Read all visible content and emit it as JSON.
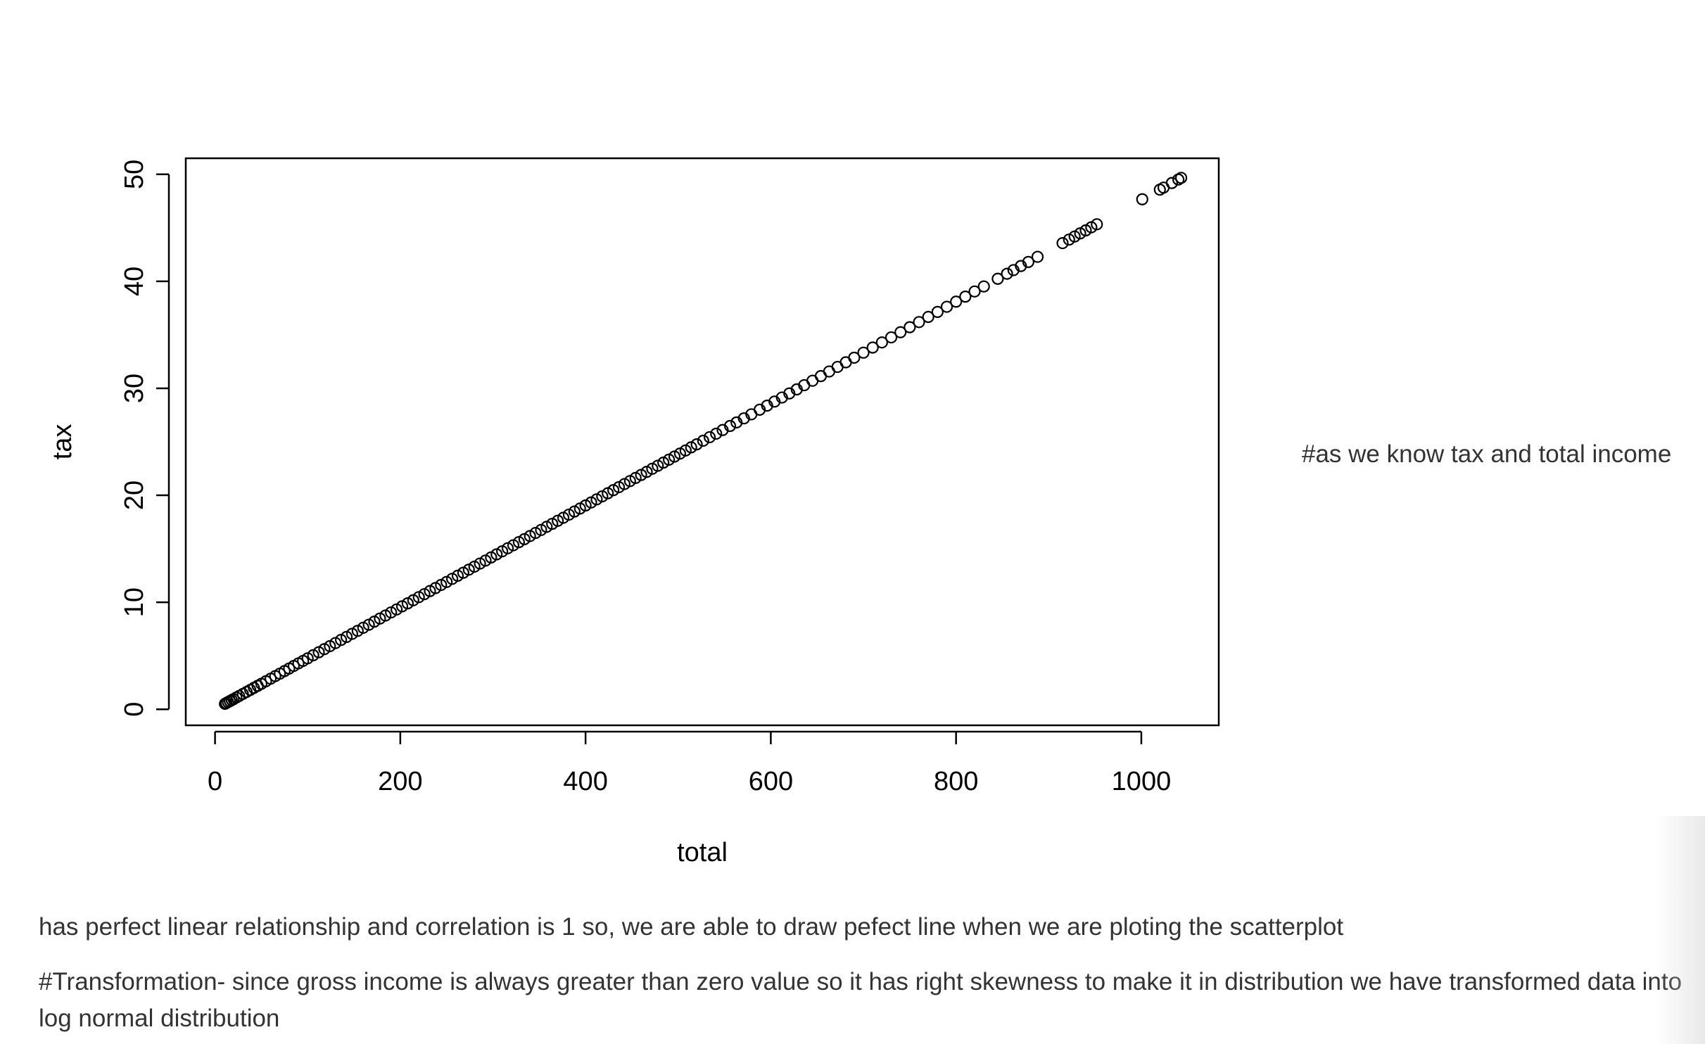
{
  "chart_data": {
    "type": "scatter",
    "title": "",
    "xlabel": "total",
    "ylabel": "tax",
    "xlim": [
      -31.6,
      1083.6
    ],
    "ylim": [
      -1.5,
      51.5
    ],
    "x_ticks": [
      0,
      200,
      400,
      600,
      800,
      1000
    ],
    "y_ticks": [
      0,
      10,
      20,
      30,
      40,
      50
    ],
    "marker": "open-circle",
    "color": "#000000",
    "grid": false,
    "legend": "none",
    "relationship": "tax = 0.047619 * total",
    "points": [
      [
        10.7,
        0.51
      ],
      [
        12,
        0.57
      ],
      [
        14,
        0.67
      ],
      [
        16,
        0.76
      ],
      [
        18,
        0.86
      ],
      [
        20,
        0.95
      ],
      [
        23,
        1.1
      ],
      [
        26,
        1.24
      ],
      [
        30,
        1.43
      ],
      [
        34,
        1.62
      ],
      [
        38,
        1.81
      ],
      [
        42,
        2.0
      ],
      [
        46,
        2.19
      ],
      [
        50,
        2.38
      ],
      [
        55,
        2.62
      ],
      [
        60,
        2.86
      ],
      [
        65,
        3.1
      ],
      [
        70,
        3.33
      ],
      [
        75,
        3.57
      ],
      [
        80,
        3.81
      ],
      [
        85,
        4.05
      ],
      [
        90,
        4.29
      ],
      [
        95,
        4.52
      ],
      [
        100,
        4.76
      ],
      [
        106,
        5.05
      ],
      [
        112,
        5.33
      ],
      [
        118,
        5.62
      ],
      [
        124,
        5.9
      ],
      [
        130,
        6.19
      ],
      [
        136,
        6.48
      ],
      [
        142,
        6.76
      ],
      [
        148,
        7.05
      ],
      [
        154,
        7.33
      ],
      [
        160,
        7.62
      ],
      [
        166,
        7.9
      ],
      [
        172,
        8.19
      ],
      [
        178,
        8.48
      ],
      [
        184,
        8.76
      ],
      [
        190,
        9.05
      ],
      [
        196,
        9.33
      ],
      [
        202,
        9.62
      ],
      [
        208,
        9.9
      ],
      [
        214,
        10.19
      ],
      [
        220,
        10.48
      ],
      [
        226,
        10.76
      ],
      [
        232,
        11.05
      ],
      [
        238,
        11.33
      ],
      [
        244,
        11.62
      ],
      [
        250,
        11.9
      ],
      [
        256,
        12.19
      ],
      [
        262,
        12.48
      ],
      [
        268,
        12.76
      ],
      [
        274,
        13.05
      ],
      [
        280,
        13.33
      ],
      [
        286,
        13.62
      ],
      [
        292,
        13.9
      ],
      [
        298,
        14.19
      ],
      [
        304,
        14.48
      ],
      [
        310,
        14.76
      ],
      [
        316,
        15.05
      ],
      [
        322,
        15.33
      ],
      [
        328,
        15.62
      ],
      [
        334,
        15.9
      ],
      [
        340,
        16.19
      ],
      [
        346,
        16.48
      ],
      [
        352,
        16.76
      ],
      [
        358,
        17.05
      ],
      [
        364,
        17.33
      ],
      [
        370,
        17.62
      ],
      [
        376,
        17.9
      ],
      [
        382,
        18.19
      ],
      [
        388,
        18.48
      ],
      [
        394,
        18.76
      ],
      [
        400,
        19.05
      ],
      [
        406,
        19.33
      ],
      [
        412,
        19.62
      ],
      [
        418,
        19.9
      ],
      [
        424,
        20.19
      ],
      [
        430,
        20.48
      ],
      [
        436,
        20.76
      ],
      [
        442,
        21.05
      ],
      [
        448,
        21.33
      ],
      [
        454,
        21.62
      ],
      [
        460,
        21.9
      ],
      [
        466,
        22.19
      ],
      [
        472,
        22.48
      ],
      [
        478,
        22.76
      ],
      [
        484,
        23.05
      ],
      [
        490,
        23.33
      ],
      [
        496,
        23.62
      ],
      [
        502,
        23.9
      ],
      [
        508,
        24.19
      ],
      [
        514,
        24.48
      ],
      [
        520,
        24.76
      ],
      [
        527,
        25.1
      ],
      [
        534,
        25.43
      ],
      [
        541,
        25.76
      ],
      [
        548,
        26.1
      ],
      [
        556,
        26.48
      ],
      [
        563,
        26.81
      ],
      [
        571,
        27.19
      ],
      [
        579,
        27.57
      ],
      [
        588,
        28.0
      ],
      [
        596,
        28.38
      ],
      [
        604,
        28.76
      ],
      [
        612,
        29.14
      ],
      [
        620,
        29.52
      ],
      [
        628,
        29.9
      ],
      [
        636,
        30.29
      ],
      [
        645,
        30.71
      ],
      [
        654,
        31.14
      ],
      [
        663,
        31.57
      ],
      [
        672,
        32.0
      ],
      [
        681,
        32.43
      ],
      [
        690,
        32.86
      ],
      [
        700,
        33.33
      ],
      [
        710,
        33.81
      ],
      [
        720,
        34.29
      ],
      [
        730,
        34.76
      ],
      [
        740,
        35.24
      ],
      [
        750,
        35.71
      ],
      [
        760,
        36.19
      ],
      [
        770,
        36.67
      ],
      [
        780,
        37.14
      ],
      [
        790,
        37.62
      ],
      [
        800,
        38.1
      ],
      [
        810,
        38.57
      ],
      [
        820,
        39.05
      ],
      [
        830,
        39.52
      ],
      [
        845,
        40.24
      ],
      [
        855,
        40.71
      ],
      [
        862,
        41.05
      ],
      [
        870,
        41.43
      ],
      [
        878,
        41.81
      ],
      [
        888,
        42.29
      ],
      [
        915,
        43.57
      ],
      [
        922,
        43.9
      ],
      [
        928,
        44.19
      ],
      [
        934,
        44.48
      ],
      [
        940,
        44.76
      ],
      [
        946,
        45.05
      ],
      [
        952,
        45.33
      ],
      [
        1001,
        47.67
      ],
      [
        1020,
        48.57
      ],
      [
        1024,
        48.76
      ],
      [
        1033,
        49.19
      ],
      [
        1040,
        49.52
      ],
      [
        1043,
        49.67
      ]
    ]
  },
  "side_note": "#as we know tax and total income",
  "paragraphs": [
    "has perfect linear relationship and correlation is 1 so, we are able to draw pefect line when we are ploting the scatterplot",
    "#Transformation- since gross income is always greater than zero value so it has right skewness to make it in distribution we have transformed data into log normal distribution"
  ]
}
